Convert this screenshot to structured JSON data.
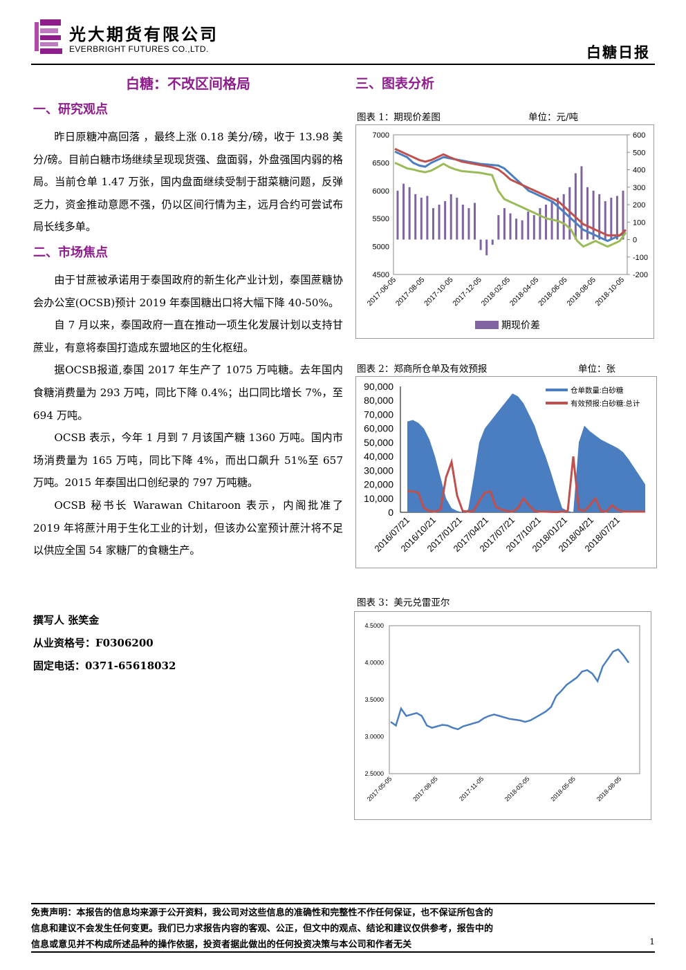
{
  "header": {
    "company_cn": "光大期货有限公司",
    "company_en": "EVERBRIGHT FUTURES CO.,LTD.",
    "report_type": "白糖日报"
  },
  "article": {
    "title": "白糖：不改区间格局",
    "s1_heading": "一、研究观点",
    "s1_p1": "昨日原糖冲高回落 ，最终上涨 0.18 美分/磅，收于 13.98 美分/磅。目前白糖市场继续呈现现货强、盘面弱，外盘强国内弱的格局。当前仓单 1.47 万张，国内盘面继续受制于甜菜糖问题，反弹乏力，资金推动意愿不强，仍以区间行情为主，远月合约可尝试布局长线多单。",
    "s2_heading": "二、市场焦点",
    "s2_p1": "由于甘蔗被承诺用于泰国政府的新生化产业计划，泰国蔗糖协会办公室(OCSB)预计 2019 年泰国糖出口将大幅下降 40-50%。",
    "s2_p2": "自 7 月以来，泰国政府一直在推动一项生化发展计划以支持甘蔗业，有意将泰国打造成东盟地区的生化枢纽。",
    "s2_p3": "据OCSB报道,泰国 2017 年生产了 1075 万吨糖。去年国内食糖消费量为 293 万吨，同比下降 0.4%；出口同比增长 7%，至 694 万吨。",
    "s2_p4": "OCSB 表示，今年 1 月到 7 月该国产糖 1360 万吨。国内市场消费量为 165 万吨，同比下降 4%，而出口飙升 51%至 657 万吨。2015 年泰国出口创纪录的 797 万吨糖。",
    "s2_p5": "OCSB 秘书长 Warawan Chitaroon 表示，内阁批准了 2019 年将蔗汁用于生化工业的计划，但该办公室预计蔗汁将不足以供应全国 54 家糖厂的食糖生产。",
    "author": "撰写人 张笑金",
    "license": "从业资格号：F0306200",
    "phone": "固定电话：0371-65618032"
  },
  "charts_section": {
    "heading": "三、图表分析",
    "fig1_caption": "图表 1：期现价差图",
    "fig1_unit": "单位：元/吨",
    "fig2_caption": "图表 2：郑商所仓单及有效预报",
    "fig2_unit": "单位：张",
    "fig3_caption": "图表 3：美元兑雷亚尔"
  },
  "chart_data": [
    {
      "type": "line",
      "title": "",
      "series": [
        {
          "name": "",
          "axis": "left",
          "color": "#4a7ec0",
          "values": [
            6700,
            6650,
            6600,
            6500,
            6450,
            6430,
            6500,
            6550,
            6600,
            6580,
            6560,
            6540,
            6520,
            6500,
            6480,
            6470,
            6460,
            6450,
            6400,
            6300,
            6200,
            6100,
            6000,
            5950,
            5900,
            5850,
            5800,
            5700,
            5600,
            5500,
            5400,
            5300,
            5250,
            5200,
            5150,
            5100,
            5150,
            5200,
            5250
          ]
        },
        {
          "name": "",
          "axis": "left",
          "color": "#c0504d",
          "values": [
            6750,
            6700,
            6650,
            6600,
            6550,
            6520,
            6550,
            6600,
            6650,
            6600,
            6560,
            6520,
            6500,
            6480,
            6460,
            6440,
            6420,
            6380,
            6300,
            6200,
            6150,
            6100,
            6050,
            6000,
            5950,
            5900,
            5850,
            5800,
            5700,
            5600,
            5500,
            5400,
            5350,
            5300,
            5250,
            5200,
            5200,
            5200,
            5300
          ]
        },
        {
          "name": "",
          "axis": "left",
          "color": "#9bbb59",
          "values": [
            6500,
            6450,
            6400,
            6380,
            6350,
            6330,
            6360,
            6420,
            6480,
            6420,
            6380,
            6350,
            6340,
            6330,
            6320,
            6300,
            6280,
            6000,
            5850,
            5800,
            5750,
            5700,
            5650,
            5600,
            5550,
            5500,
            5480,
            5450,
            5400,
            5300,
            5100,
            5000,
            5050,
            5100,
            5050,
            5000,
            5050,
            5100,
            5250
          ]
        },
        {
          "name": "期现价差",
          "axis": "right",
          "color": "#8064a2",
          "values": [
            280,
            320,
            300,
            260,
            240,
            250,
            180,
            200,
            220,
            260,
            240,
            200,
            180,
            210,
            -60,
            -90,
            -30,
            140,
            180,
            150,
            120,
            110,
            160,
            140,
            180,
            200,
            220,
            240,
            260,
            300,
            380,
            420,
            300,
            280,
            260,
            220,
            240,
            250,
            280
          ]
        }
      ],
      "x_tick_labels": [
        "2017-06-05",
        "2017-08-05",
        "2017-10-05",
        "2017-12-05",
        "2018-02-05",
        "2018-04-05",
        "2018-06-05",
        "2018-08-05",
        "2018-10-05"
      ],
      "y_left_ticks": [
        "7000",
        "6500",
        "6000",
        "5500",
        "5000",
        "4500"
      ],
      "y_right_ticks": [
        "600",
        "500",
        "400",
        "300",
        "200",
        "100",
        "0",
        "-100",
        "-200"
      ],
      "ylim_left": [
        4500,
        7000
      ],
      "ylim_right": [
        -200,
        600
      ],
      "legend": {
        "label": "期现价差",
        "position": "bottom"
      }
    },
    {
      "type": "area",
      "title": "",
      "series": [
        {
          "name": "仓单数量:白砂糖",
          "type": "area",
          "color": "#4a7ec0",
          "values": [
            65000,
            66000,
            64000,
            60000,
            52000,
            40000,
            25000,
            10000,
            3000,
            1000,
            0,
            2000,
            25000,
            50000,
            60000,
            65000,
            70000,
            75000,
            80000,
            85000,
            83000,
            78000,
            70000,
            62000,
            50000,
            40000,
            28000,
            15000,
            3000,
            1000,
            0,
            50000,
            62000,
            58000,
            55000,
            52000,
            50000,
            48000,
            46000,
            43000,
            38000,
            32000,
            26000,
            20000
          ]
        },
        {
          "name": "有效预报:白砂糖:总计",
          "type": "line",
          "color": "#c0504d",
          "values": [
            15000,
            15000,
            14000,
            3000,
            1000,
            500,
            2000,
            25000,
            36000,
            12000,
            1000,
            500,
            1000,
            8000,
            14000,
            15000,
            4000,
            2000,
            1000,
            500,
            3000,
            10000,
            5000,
            1000,
            500,
            500,
            300,
            200,
            500,
            1000,
            40000,
            2000,
            1000,
            5000,
            10000,
            1000,
            500,
            5000,
            2000,
            500,
            500,
            500,
            500,
            500
          ]
        }
      ],
      "x_tick_labels": [
        "2016/07/21",
        "2016/10/21",
        "2017/01/21",
        "2017/04/21",
        "2017/07/21",
        "2017/10/21",
        "2018/01/21",
        "2018/04/21",
        "2018/07/21"
      ],
      "y_ticks": [
        "90,000",
        "80,000",
        "70,000",
        "60,000",
        "50,000",
        "40,000",
        "30,000",
        "20,000",
        "10,000",
        "0"
      ],
      "ylim": [
        0,
        90000
      ],
      "legend": {
        "position": "top-right"
      }
    },
    {
      "type": "line",
      "title": "",
      "series": [
        {
          "name": "",
          "color": "#4a7ec0",
          "values": [
            3.2,
            3.15,
            3.38,
            3.28,
            3.3,
            3.32,
            3.28,
            3.15,
            3.12,
            3.14,
            3.16,
            3.15,
            3.12,
            3.1,
            3.14,
            3.16,
            3.18,
            3.2,
            3.25,
            3.28,
            3.3,
            3.28,
            3.26,
            3.24,
            3.23,
            3.22,
            3.2,
            3.22,
            3.26,
            3.3,
            3.34,
            3.4,
            3.55,
            3.62,
            3.7,
            3.75,
            3.8,
            3.88,
            3.9,
            3.85,
            3.75,
            3.95,
            4.05,
            4.15,
            4.18,
            4.1,
            4.0
          ]
        }
      ],
      "x_tick_labels": [
        "2017-05-05",
        "2017-08-05",
        "2017-11-05",
        "2018-02-05",
        "2018-05-05",
        "2018-08-05"
      ],
      "y_ticks": [
        "4.5000",
        "4.0000",
        "3.5000",
        "3.0000",
        "2.5000"
      ],
      "ylim": [
        2.5,
        4.5
      ]
    }
  ],
  "footer": {
    "disclaimer_l1": "免责声明：本报告的信息均来源于公开资料，我公司对这些信息的准确性和完整性不作任何保证，也不保证所包含的",
    "disclaimer_l2": "信息和建议不会发生任何变更。我们已力求报告内容的客观、公正，但文中的观点、结论和建议仅供参考，报告中的",
    "disclaimer_l3": "信息或意见并不构成所述品种的操作依据，投资者据此做出的任何投资决策与本公司和作者无关",
    "page_number": "1"
  }
}
